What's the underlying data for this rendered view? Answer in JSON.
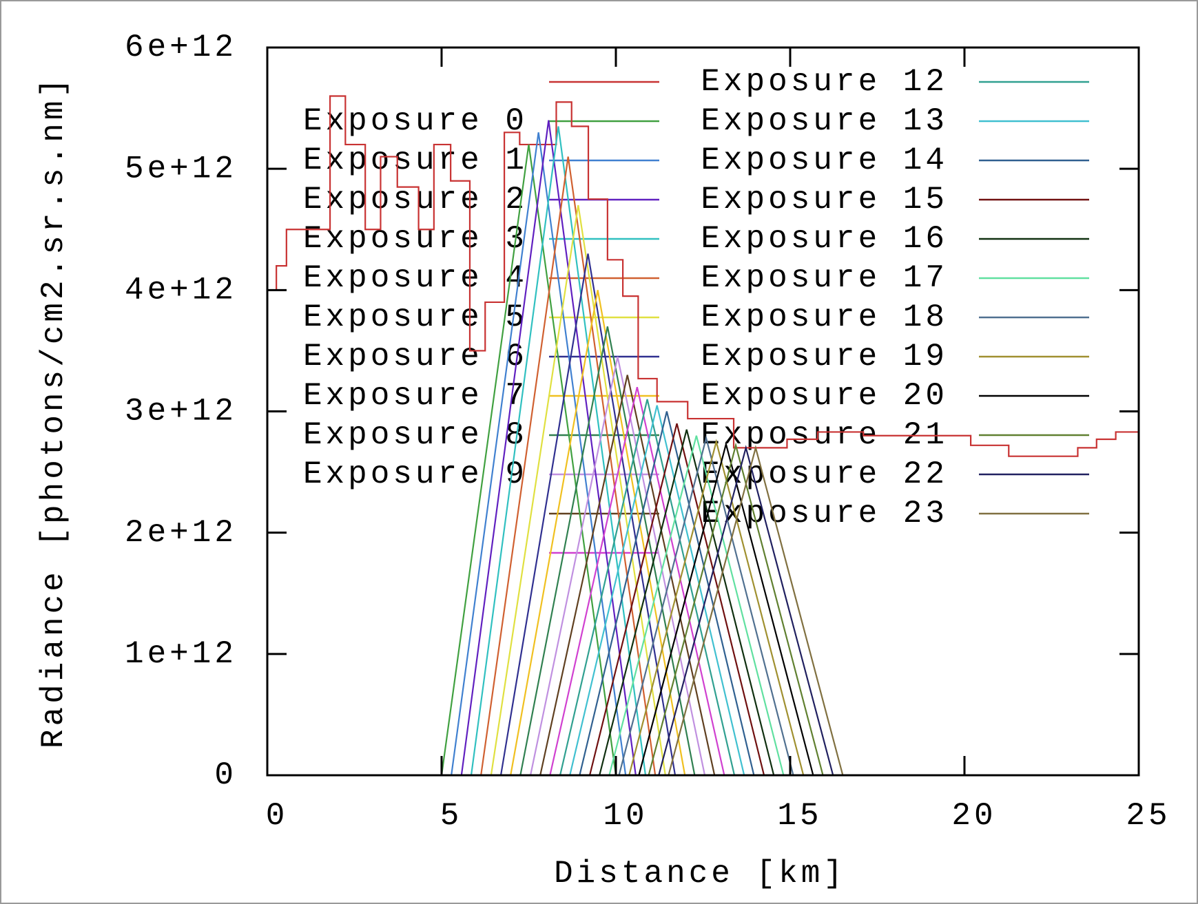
{
  "chart_data": {
    "type": "line",
    "x_label": "Distance [km]",
    "y_label": "Radiance [photons/cm2.sr.s.nm]",
    "xlim": [
      0,
      25
    ],
    "xticks": [
      0,
      5,
      10,
      15,
      20,
      25
    ],
    "ylim": [
      0,
      6000000000000.0
    ],
    "yticks": [
      0,
      {
        "value": 1000000000000.0,
        "label": "1e+12"
      },
      {
        "value": 2000000000000.0,
        "label": "2e+12"
      },
      {
        "value": 3000000000000.0,
        "label": "3e+12"
      },
      {
        "value": 4000000000000.0,
        "label": "4e+12"
      },
      {
        "value": 5000000000000.0,
        "label": "5e+12"
      },
      {
        "value": 6000000000000.0,
        "label": "6e+12"
      }
    ],
    "series": [
      {
        "color": "#c83232",
        "style": "steps",
        "x": [
          0,
          0.26,
          0.55,
          1.8,
          2.24,
          2.81,
          3.25,
          3.73,
          4.34,
          4.78,
          5.26,
          5.81,
          6.25,
          6.8,
          7.24,
          8.29,
          8.73,
          9.21,
          9.76,
          10.2,
          10.64,
          11.18,
          12.06,
          13.38,
          14.91,
          15.79,
          17.1,
          20.18,
          21.27,
          23.25,
          23.79,
          24.34
        ],
        "values": [
          4000000000000.0,
          4200000000000.0,
          4500000000000.0,
          5600000000000.0,
          5200000000000.0,
          4500000000000.0,
          5100000000000.0,
          4850000000000.0,
          4500000000000.0,
          5200000000000.0,
          4900000000000.0,
          3500000000000.0,
          3900000000000.0,
          5300000000000.0,
          5200000000000.0,
          5550000000000.0,
          5350000000000.0,
          4750000000000.0,
          4250000000000.0,
          3950000000000.0,
          3270000000000.0,
          3080000000000.0,
          2940000000000.0,
          2700000000000.0,
          2770000000000.0,
          2830000000000.0,
          2800000000000.0,
          2720000000000.0,
          2630000000000.0,
          2700000000000.0,
          2770000000000.0,
          2830000000000.0
        ]
      },
      {
        "name": "Exposure 0",
        "color": "#40a040",
        "x": [
          5,
          6.25,
          7.5,
          8.75,
          10
        ],
        "values": [
          0,
          2600000000000.0,
          5200000000000.0,
          2600000000000.0,
          0
        ]
      },
      {
        "name": "Exposure 1",
        "color": "#4080d0",
        "x": [
          5.28,
          6.53,
          7.78,
          9.03,
          10.28
        ],
        "values": [
          0,
          2650000000000.0,
          5300000000000.0,
          2650000000000.0,
          0
        ]
      },
      {
        "name": "Exposure 2",
        "color": "#6020c0",
        "x": [
          5.57,
          6.82,
          8.07,
          9.32,
          10.57
        ],
        "values": [
          0,
          2700000000000.0,
          5400000000000.0,
          2700000000000.0,
          0
        ]
      },
      {
        "name": "Exposure 3",
        "color": "#30c0c0",
        "x": [
          5.85,
          7.1,
          8.35,
          9.6,
          10.85
        ],
        "values": [
          0,
          2675000000000.0,
          5350000000000.0,
          2675000000000.0,
          0
        ]
      },
      {
        "name": "Exposure 4",
        "color": "#d06030",
        "x": [
          6.13,
          7.38,
          8.63,
          9.88,
          11.13
        ],
        "values": [
          0,
          2550000000000.0,
          5100000000000.0,
          2550000000000.0,
          0
        ]
      },
      {
        "name": "Exposure 5",
        "color": "#e0e040",
        "x": [
          6.42,
          7.67,
          8.92,
          10.17,
          11.42
        ],
        "values": [
          0,
          2350000000000.0,
          4700000000000.0,
          2350000000000.0,
          0
        ]
      },
      {
        "name": "Exposure 6",
        "color": "#303090",
        "x": [
          6.7,
          7.95,
          9.2,
          10.45,
          11.7
        ],
        "values": [
          0,
          2150000000000.0,
          4300000000000.0,
          2150000000000.0,
          0
        ]
      },
      {
        "name": "Exposure 7",
        "color": "#f0c020",
        "x": [
          6.98,
          8.23,
          9.48,
          10.73,
          11.98
        ],
        "values": [
          0,
          2000000000000.0,
          4000000000000.0,
          2000000000000.0,
          0
        ]
      },
      {
        "name": "Exposure 8",
        "color": "#308050",
        "x": [
          7.26,
          8.51,
          9.76,
          11.01,
          12.26
        ],
        "values": [
          0,
          1850000000000.0,
          3700000000000.0,
          1850000000000.0,
          0
        ]
      },
      {
        "name": "Exposure 9",
        "color": "#c090e0",
        "x": [
          7.55,
          8.8,
          10.05,
          11.3,
          12.55
        ],
        "values": [
          0,
          1725000000000.0,
          3450000000000.0,
          1725000000000.0,
          0
        ]
      },
      {
        "color": "#604020",
        "x": [
          7.83,
          9.08,
          10.33,
          11.58,
          12.83
        ],
        "values": [
          0,
          1650000000000.0,
          3300000000000.0,
          1650000000000.0,
          0
        ]
      },
      {
        "color": "#d040d0",
        "x": [
          8.11,
          9.36,
          10.61,
          11.86,
          13.11
        ],
        "values": [
          0,
          1600000000000.0,
          3200000000000.0,
          1600000000000.0,
          0
        ]
      },
      {
        "name": "Exposure 12",
        "color": "#30a090",
        "x": [
          8.4,
          9.65,
          10.9,
          12.15,
          13.4
        ],
        "values": [
          0,
          1550000000000.0,
          3100000000000.0,
          1550000000000.0,
          0
        ]
      },
      {
        "name": "Exposure 13",
        "color": "#40c0d0",
        "x": [
          8.68,
          9.93,
          11.18,
          12.43,
          13.68
        ],
        "values": [
          0,
          1525000000000.0,
          3050000000000.0,
          1525000000000.0,
          0
        ]
      },
      {
        "name": "Exposure 14",
        "color": "#306090",
        "x": [
          8.96,
          10.21,
          11.46,
          12.71,
          13.96
        ],
        "values": [
          0,
          1500000000000.0,
          3000000000000.0,
          1500000000000.0,
          0
        ]
      },
      {
        "name": "Exposure 15",
        "color": "#701010",
        "x": [
          9.25,
          10.5,
          11.75,
          13,
          14.25
        ],
        "values": [
          0,
          1450000000000.0,
          2900000000000.0,
          1450000000000.0,
          0
        ]
      },
      {
        "name": "Exposure 16",
        "color": "#103010",
        "x": [
          9.53,
          10.78,
          12.03,
          13.28,
          14.53
        ],
        "values": [
          0,
          1425000000000.0,
          2850000000000.0,
          1425000000000.0,
          0
        ]
      },
      {
        "name": "Exposure 17",
        "color": "#60e0a0",
        "x": [
          9.81,
          11.06,
          12.31,
          13.56,
          14.81
        ],
        "values": [
          0,
          1400000000000.0,
          2800000000000.0,
          1400000000000.0,
          0
        ]
      },
      {
        "name": "Exposure 18",
        "color": "#507090",
        "x": [
          10.09,
          11.34,
          12.59,
          13.84,
          15.09
        ],
        "values": [
          0,
          1390000000000.0,
          2780000000000.0,
          1390000000000.0,
          0
        ]
      },
      {
        "name": "Exposure 19",
        "color": "#a09030",
        "x": [
          10.38,
          11.63,
          12.88,
          14.13,
          15.38
        ],
        "values": [
          0,
          1375000000000.0,
          2750000000000.0,
          1375000000000.0,
          0
        ]
      },
      {
        "name": "Exposure 20",
        "color": "#000000",
        "x": [
          10.66,
          11.91,
          13.16,
          14.41,
          15.66
        ],
        "values": [
          0,
          1365000000000.0,
          2730000000000.0,
          1365000000000.0,
          0
        ]
      },
      {
        "name": "Exposure 21",
        "color": "#608030",
        "x": [
          10.94,
          12.19,
          13.44,
          14.69,
          15.94
        ],
        "values": [
          0,
          1360000000000.0,
          2720000000000.0,
          1360000000000.0,
          0
        ]
      },
      {
        "name": "Exposure 22",
        "color": "#202060",
        "x": [
          11.23,
          12.48,
          13.73,
          14.98,
          16.23
        ],
        "values": [
          0,
          1350000000000.0,
          2700000000000.0,
          1350000000000.0,
          0
        ]
      },
      {
        "name": "Exposure 23",
        "color": "#807040",
        "x": [
          11.51,
          12.76,
          14.01,
          15.26,
          16.51
        ],
        "values": [
          0,
          1350000000000.0,
          2700000000000.0,
          1350000000000.0,
          0
        ]
      }
    ]
  }
}
